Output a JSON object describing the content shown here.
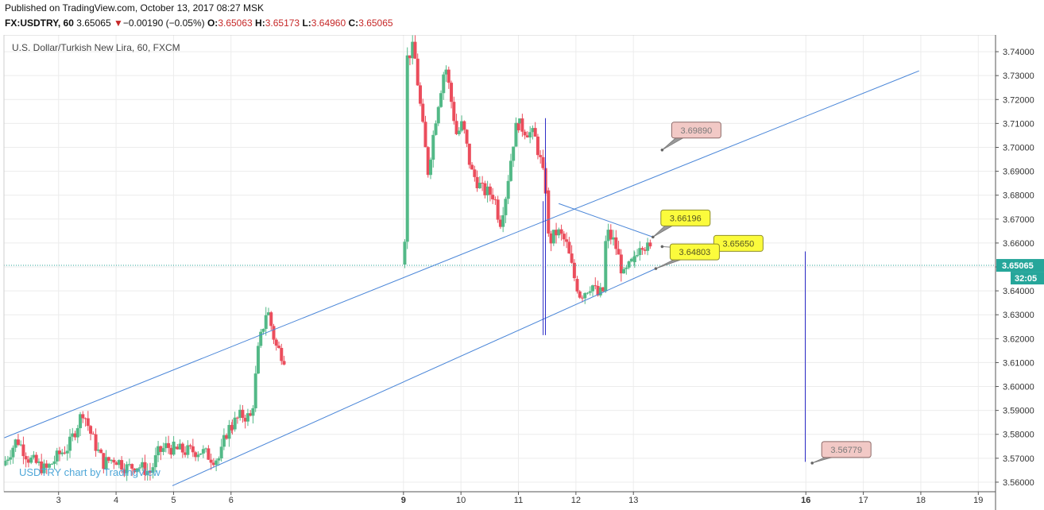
{
  "header": {
    "published": "Published on TradingView.com, October 13, 2017 08:27 MSK",
    "symbol": "FX:USDTRY, 60",
    "last": "3.65065",
    "change_arrow": "▼",
    "change": "−0.00190 (−0.05%)",
    "o_label": "O:",
    "o_value": "3.65063",
    "h_label": "H:",
    "h_value": "3.65173",
    "l_label": "L:",
    "l_value": "3.64960",
    "c_label": "C:",
    "c_value": "3.65065"
  },
  "chart_title": "U.S. Dollar/Turkish New Lira, 60, FXCM",
  "watermark": "USDTRY chart by TradingView",
  "colors": {
    "up": "#53b987",
    "down": "#eb4d5c",
    "trend": "#4a86d8",
    "vertical": "#2b2bc8",
    "price_line": "#26a69a"
  },
  "chart_data": {
    "type": "candlestick",
    "x_ticks": [
      "3",
      "4",
      "5",
      "6",
      "9",
      "10",
      "11",
      "12",
      "13",
      "16",
      "17",
      "18",
      "19"
    ],
    "x_tick_values": [
      3,
      4,
      5,
      6,
      9,
      10,
      11,
      12,
      13,
      16,
      17,
      18,
      19
    ],
    "xlim": [
      2.05,
      19.3
    ],
    "ylim": [
      3.556,
      3.747
    ],
    "y_ticks": [
      "3.56000",
      "3.57000",
      "3.58000",
      "3.59000",
      "3.60000",
      "3.61000",
      "3.62000",
      "3.63000",
      "3.64000",
      "3.65000",
      "3.66000",
      "3.67000",
      "3.68000",
      "3.69000",
      "3.70000",
      "3.71000",
      "3.72000",
      "3.73000",
      "3.74000"
    ],
    "y_tick_values": [
      3.56,
      3.57,
      3.58,
      3.59,
      3.6,
      3.61,
      3.62,
      3.63,
      3.64,
      3.65,
      3.66,
      3.67,
      3.68,
      3.69,
      3.7,
      3.71,
      3.72,
      3.73,
      3.74
    ],
    "current_price": {
      "value": 3.65065,
      "label": "3.65065",
      "countdown": "32:05"
    },
    "price_segments": [
      {
        "from": 2.05,
        "to": 4.62,
        "points": [
          [
            2.05,
            3.567
          ],
          [
            2.3,
            3.578
          ],
          [
            2.5,
            3.57
          ],
          [
            2.8,
            3.565
          ],
          [
            3.05,
            3.572
          ],
          [
            3.2,
            3.575
          ],
          [
            3.45,
            3.59
          ],
          [
            3.6,
            3.579
          ],
          [
            3.8,
            3.568
          ],
          [
            4.0,
            3.57
          ],
          [
            4.2,
            3.566
          ],
          [
            4.4,
            3.567
          ],
          [
            4.62,
            3.564
          ]
        ]
      },
      {
        "from": 4.62,
        "to": 5.0,
        "points": [
          [
            4.62,
            3.564
          ],
          [
            4.75,
            3.572
          ],
          [
            4.9,
            3.575
          ],
          [
            5.0,
            3.574
          ]
        ]
      },
      {
        "from": 5.0,
        "to": 6.0,
        "points": [
          [
            5.0,
            3.574
          ],
          [
            5.2,
            3.573
          ],
          [
            5.5,
            3.573
          ],
          [
            5.7,
            3.57
          ],
          [
            5.83,
            3.57
          ],
          [
            5.93,
            3.58
          ],
          [
            6.0,
            3.583
          ]
        ]
      },
      {
        "from": 6.0,
        "to": 6.95,
        "points": [
          [
            6.0,
            3.583
          ],
          [
            6.2,
            3.588
          ],
          [
            6.38,
            3.587
          ],
          [
            6.5,
            3.616
          ],
          [
            6.65,
            3.633
          ],
          [
            6.8,
            3.617
          ],
          [
            6.95,
            3.612
          ]
        ]
      },
      {
        "from": 9.0,
        "to": 11.0,
        "points": [
          [
            9.0,
            3.651
          ],
          [
            9.06,
            3.667
          ],
          [
            9.08,
            3.737
          ],
          [
            9.2,
            3.742
          ],
          [
            9.35,
            3.71
          ],
          [
            9.45,
            3.69
          ],
          [
            9.6,
            3.715
          ],
          [
            9.75,
            3.735
          ],
          [
            9.85,
            3.72
          ],
          [
            9.95,
            3.705
          ],
          [
            10.05,
            3.71
          ],
          [
            10.2,
            3.69
          ],
          [
            10.4,
            3.682
          ],
          [
            10.6,
            3.68
          ],
          [
            10.7,
            3.668
          ],
          [
            10.8,
            3.68
          ],
          [
            10.95,
            3.705
          ],
          [
            11.0,
            3.71
          ]
        ]
      },
      {
        "from": 11.0,
        "to": 11.5,
        "points": [
          [
            11.0,
            3.71
          ],
          [
            11.15,
            3.707
          ],
          [
            11.3,
            3.705
          ],
          [
            11.4,
            3.695
          ],
          [
            11.5,
            3.682
          ]
        ]
      },
      {
        "from": 11.5,
        "to": 12.0,
        "points": [
          [
            11.5,
            3.682
          ],
          [
            11.55,
            3.66
          ],
          [
            11.7,
            3.665
          ],
          [
            11.85,
            3.66
          ],
          [
            12.0,
            3.645
          ]
        ]
      },
      {
        "from": 12.0,
        "to": 13.0,
        "points": [
          [
            12.0,
            3.645
          ],
          [
            12.1,
            3.638
          ],
          [
            12.3,
            3.643
          ],
          [
            12.4,
            3.638
          ],
          [
            12.5,
            3.64
          ],
          [
            12.55,
            3.665
          ],
          [
            12.7,
            3.66
          ],
          [
            12.85,
            3.646
          ],
          [
            12.95,
            3.65
          ],
          [
            13.0,
            3.652
          ]
        ]
      },
      {
        "from": 13.0,
        "to": 13.3,
        "points": [
          [
            13.0,
            3.652
          ],
          [
            13.15,
            3.661
          ],
          [
            13.3,
            3.657
          ]
        ]
      }
    ],
    "trend_lines": [
      {
        "name": "channel-upper",
        "from": [
          2.05,
          3.5785
        ],
        "to": [
          17.97,
          3.732
        ]
      },
      {
        "name": "channel-lower",
        "from": [
          4.98,
          3.5585
        ],
        "to": [
          13.39,
          3.6493
        ]
      },
      {
        "name": "triangle-upper",
        "from": [
          11.7,
          3.6765
        ],
        "to": [
          13.34,
          3.6625
        ]
      }
    ],
    "vertical_lines": [
      {
        "x": 11.47,
        "y_from": 3.6215,
        "y_to": 3.7122
      },
      {
        "x": 11.43,
        "y_from": 3.6215,
        "y_to": 3.6775
      },
      {
        "x": 15.99,
        "y_from": 3.5685,
        "y_to": 3.6565
      }
    ],
    "callouts": [
      {
        "label": "3.69890",
        "anchor": [
          13.5,
          3.6989
        ],
        "style": "pink"
      },
      {
        "label": "3.66196",
        "anchor": [
          13.34,
          3.6625
        ],
        "style": "yellow"
      },
      {
        "label": "3.65650",
        "anchor": [
          13.5,
          3.6585
        ],
        "style": "yellow"
      },
      {
        "label": "3.64803",
        "anchor": [
          13.39,
          3.6493
        ],
        "style": "yellow"
      },
      {
        "label": "3.56779",
        "anchor": [
          16.11,
          3.568
        ],
        "style": "pink"
      }
    ]
  }
}
